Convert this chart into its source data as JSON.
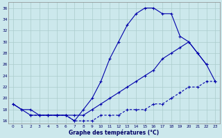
{
  "xlabel": "Graphe des températures (°C)",
  "background_color": "#cce8ec",
  "grid_color": "#aacccc",
  "line_color": "#0000aa",
  "ylim": [
    15.5,
    37.0
  ],
  "xlim": [
    -0.5,
    23.5
  ],
  "yticks": [
    16,
    18,
    20,
    22,
    24,
    26,
    28,
    30,
    32,
    34,
    36
  ],
  "xticks": [
    0,
    1,
    2,
    3,
    4,
    5,
    6,
    7,
    8,
    9,
    10,
    11,
    12,
    13,
    14,
    15,
    16,
    17,
    18,
    19,
    20,
    21,
    22,
    23
  ],
  "series1_x": [
    0,
    1,
    2,
    3,
    4,
    5,
    6,
    7,
    8,
    9,
    10,
    11,
    12,
    13,
    14,
    15,
    16,
    17,
    18,
    19,
    20,
    21,
    22
  ],
  "series1_y": [
    19,
    18,
    17,
    17,
    17,
    17,
    17,
    16,
    18,
    20,
    23,
    27,
    30,
    33,
    35,
    36,
    36,
    35,
    35,
    31,
    30,
    28,
    26
  ],
  "series2_x": [
    0,
    1,
    2,
    3,
    4,
    5,
    6,
    7,
    8,
    9,
    10,
    11,
    12,
    13,
    14,
    15,
    16,
    17,
    18,
    19,
    20,
    21,
    22,
    23
  ],
  "series2_y": [
    19,
    18,
    18,
    17,
    17,
    17,
    17,
    17,
    17,
    18,
    19,
    20,
    21,
    22,
    23,
    24,
    25,
    27,
    28,
    29,
    30,
    28,
    26,
    23
  ],
  "series3_x": [
    2,
    3,
    4,
    5,
    6,
    7,
    8,
    9,
    10,
    11,
    12,
    13,
    14,
    15,
    16,
    17,
    18,
    19,
    20,
    21,
    22,
    23
  ],
  "series3_y": [
    17,
    17,
    17,
    17,
    17,
    16,
    16,
    16,
    17,
    17,
    17,
    18,
    18,
    18,
    19,
    19,
    20,
    21,
    22,
    22,
    23,
    23
  ]
}
